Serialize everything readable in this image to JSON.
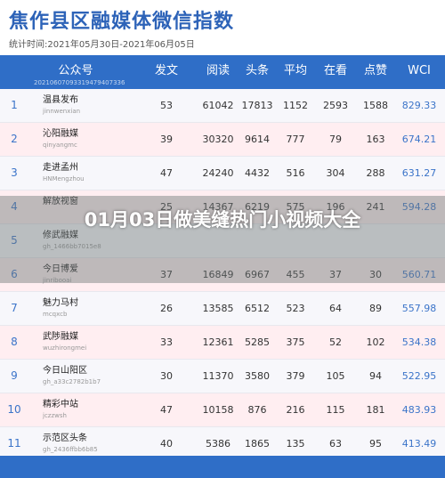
{
  "header": {
    "title": "焦作县区融媒体微信指数",
    "period": "统计时间:2021年05月30日-2021年06月05日"
  },
  "table": {
    "columns": {
      "account": "公众号",
      "posts": "发文",
      "reads": "阅读",
      "headline": "头条",
      "average": "平均",
      "watching": "在看",
      "likes": "点赞",
      "wci": "WCI"
    },
    "stamp": "20210607093319479407336",
    "rows": [
      {
        "rank": "1",
        "name": "温县发布",
        "account": "jinnwenxian",
        "posts": "53",
        "reads": "61042",
        "headline": "17813",
        "average": "1152",
        "watching": "2593",
        "likes": "1588",
        "wci": "829.33"
      },
      {
        "rank": "2",
        "name": "沁阳融媒",
        "account": "qinyangmc",
        "posts": "39",
        "reads": "30320",
        "headline": "9614",
        "average": "777",
        "watching": "79",
        "likes": "163",
        "wci": "674.21"
      },
      {
        "rank": "3",
        "name": "走进孟州",
        "account": "HNMengzhou",
        "posts": "47",
        "reads": "24240",
        "headline": "4432",
        "average": "516",
        "watching": "304",
        "likes": "288",
        "wci": "631.27"
      },
      {
        "rank": "4",
        "name": "解放视窗",
        "account": "",
        "posts": "25",
        "reads": "14367",
        "headline": "6219",
        "average": "575",
        "watching": "196",
        "likes": "241",
        "wci": "594.28"
      },
      {
        "rank": "5",
        "name": "修武融媒",
        "account": "gh_1466bb7015e8",
        "posts": "",
        "reads": "",
        "headline": "",
        "average": "",
        "watching": "",
        "likes": "",
        "wci": ""
      },
      {
        "rank": "6",
        "name": "今日博爱",
        "account": "jinribooai",
        "posts": "37",
        "reads": "16849",
        "headline": "6967",
        "average": "455",
        "watching": "37",
        "likes": "30",
        "wci": "560.71"
      },
      {
        "rank": "7",
        "name": "魅力马村",
        "account": "mcqxcb",
        "posts": "26",
        "reads": "13585",
        "headline": "6512",
        "average": "523",
        "watching": "64",
        "likes": "89",
        "wci": "557.98"
      },
      {
        "rank": "8",
        "name": "武陟融媒",
        "account": "wuzhirongmei",
        "posts": "33",
        "reads": "12361",
        "headline": "5285",
        "average": "375",
        "watching": "52",
        "likes": "102",
        "wci": "534.38"
      },
      {
        "rank": "9",
        "name": "今日山阳区",
        "account": "gh_a33c2782b1b7",
        "posts": "30",
        "reads": "11370",
        "headline": "3580",
        "average": "379",
        "watching": "105",
        "likes": "94",
        "wci": "522.95"
      },
      {
        "rank": "10",
        "name": "精彩中站",
        "account": "jczzwsh",
        "posts": "47",
        "reads": "10158",
        "headline": "876",
        "average": "216",
        "watching": "115",
        "likes": "181",
        "wci": "483.93"
      },
      {
        "rank": "11",
        "name": "示范区头条",
        "account": "gh_2436ffbb6b85",
        "posts": "40",
        "reads": "5386",
        "headline": "1865",
        "average": "135",
        "watching": "63",
        "likes": "95",
        "wci": "413.49"
      }
    ]
  },
  "overlay": {
    "text": "01月03日做美缝热门小视频大全"
  }
}
